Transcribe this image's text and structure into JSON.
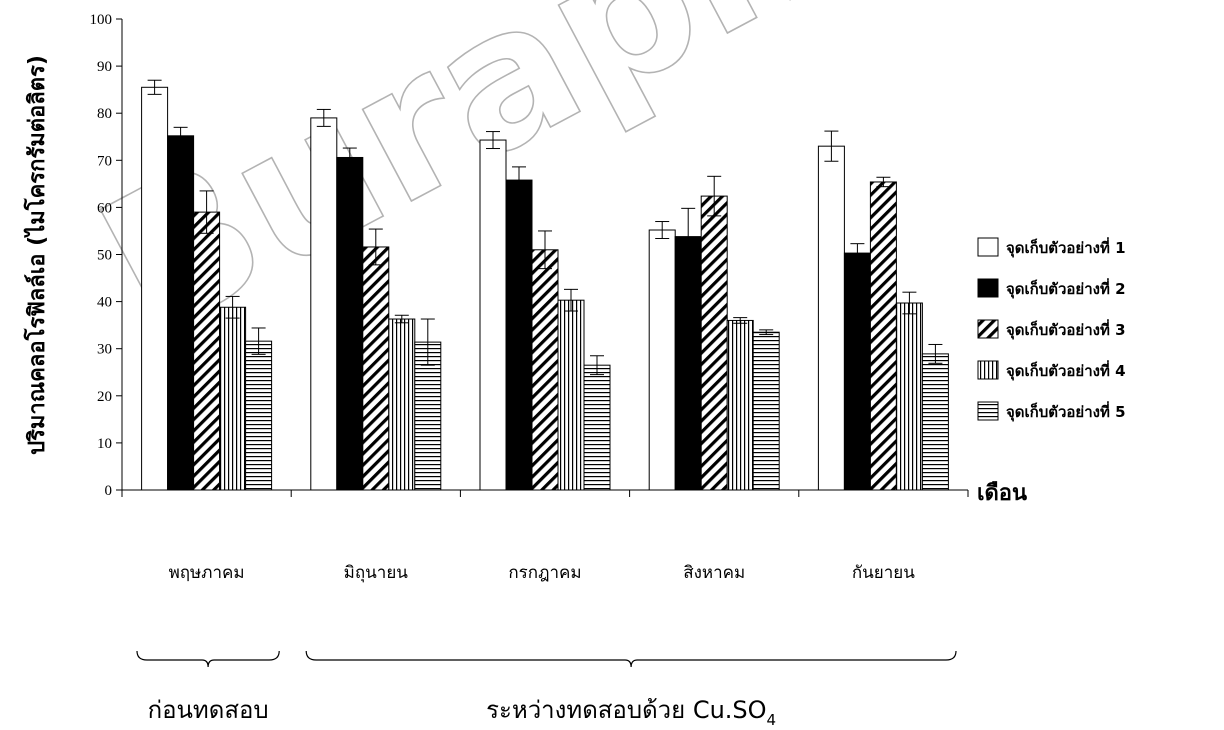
{
  "chart_data": {
    "type": "bar",
    "ylabel": "ปริมาณคลอโรฟิลล์เอ (ไมโครกรัมต่อลิตร)",
    "xlabel": "เดือน",
    "ylim": [
      0,
      100
    ],
    "yticks": [
      0,
      10,
      20,
      30,
      40,
      50,
      60,
      70,
      80,
      90,
      100
    ],
    "grid": false,
    "legend_position": "right",
    "categories": [
      "พฤษภาคม",
      "มิถุนายน",
      "กรกฎาคม",
      "สิงหาคม",
      "กันยายน"
    ],
    "series": [
      {
        "name": "จุดเก็บตัวอย่างที่ 1",
        "fill": "white",
        "values": [
          85.5,
          79.0,
          74.3,
          55.2,
          73.0
        ],
        "errors": [
          1.5,
          1.8,
          1.8,
          1.8,
          3.2
        ]
      },
      {
        "name": "จุดเก็บตัวอย่างที่ 2",
        "fill": "black",
        "values": [
          75.2,
          70.6,
          65.8,
          53.8,
          50.3
        ],
        "errors": [
          1.8,
          2.0,
          2.8,
          6.0,
          2.0
        ]
      },
      {
        "name": "จุดเก็บตัวอย่างที่ 3",
        "fill": "diagonal",
        "values": [
          59.0,
          51.6,
          51.0,
          62.4,
          65.4
        ],
        "errors": [
          4.5,
          3.8,
          4.0,
          4.2,
          1.0
        ]
      },
      {
        "name": "จุดเก็บตัวอย่างที่ 4",
        "fill": "vertical",
        "values": [
          38.8,
          36.3,
          40.3,
          36.0,
          39.7
        ],
        "errors": [
          2.3,
          0.8,
          2.3,
          0.6,
          2.3
        ]
      },
      {
        "name": "จุดเก็บตัวอย่างที่ 5",
        "fill": "horizontal",
        "values": [
          31.6,
          31.4,
          26.5,
          33.5,
          28.9
        ],
        "errors": [
          2.8,
          4.9,
          2.0,
          0.5,
          2.0
        ]
      }
    ],
    "group_labels": [
      {
        "text": "ก่อนทดสอบ",
        "from_category": 0,
        "to_category": 0
      },
      {
        "text": "ระหว่างทดสอบด้วย Cu.SO",
        "subscript": "4",
        "from_category": 1,
        "to_category": 4
      }
    ]
  },
  "watermark": "Burapha University"
}
